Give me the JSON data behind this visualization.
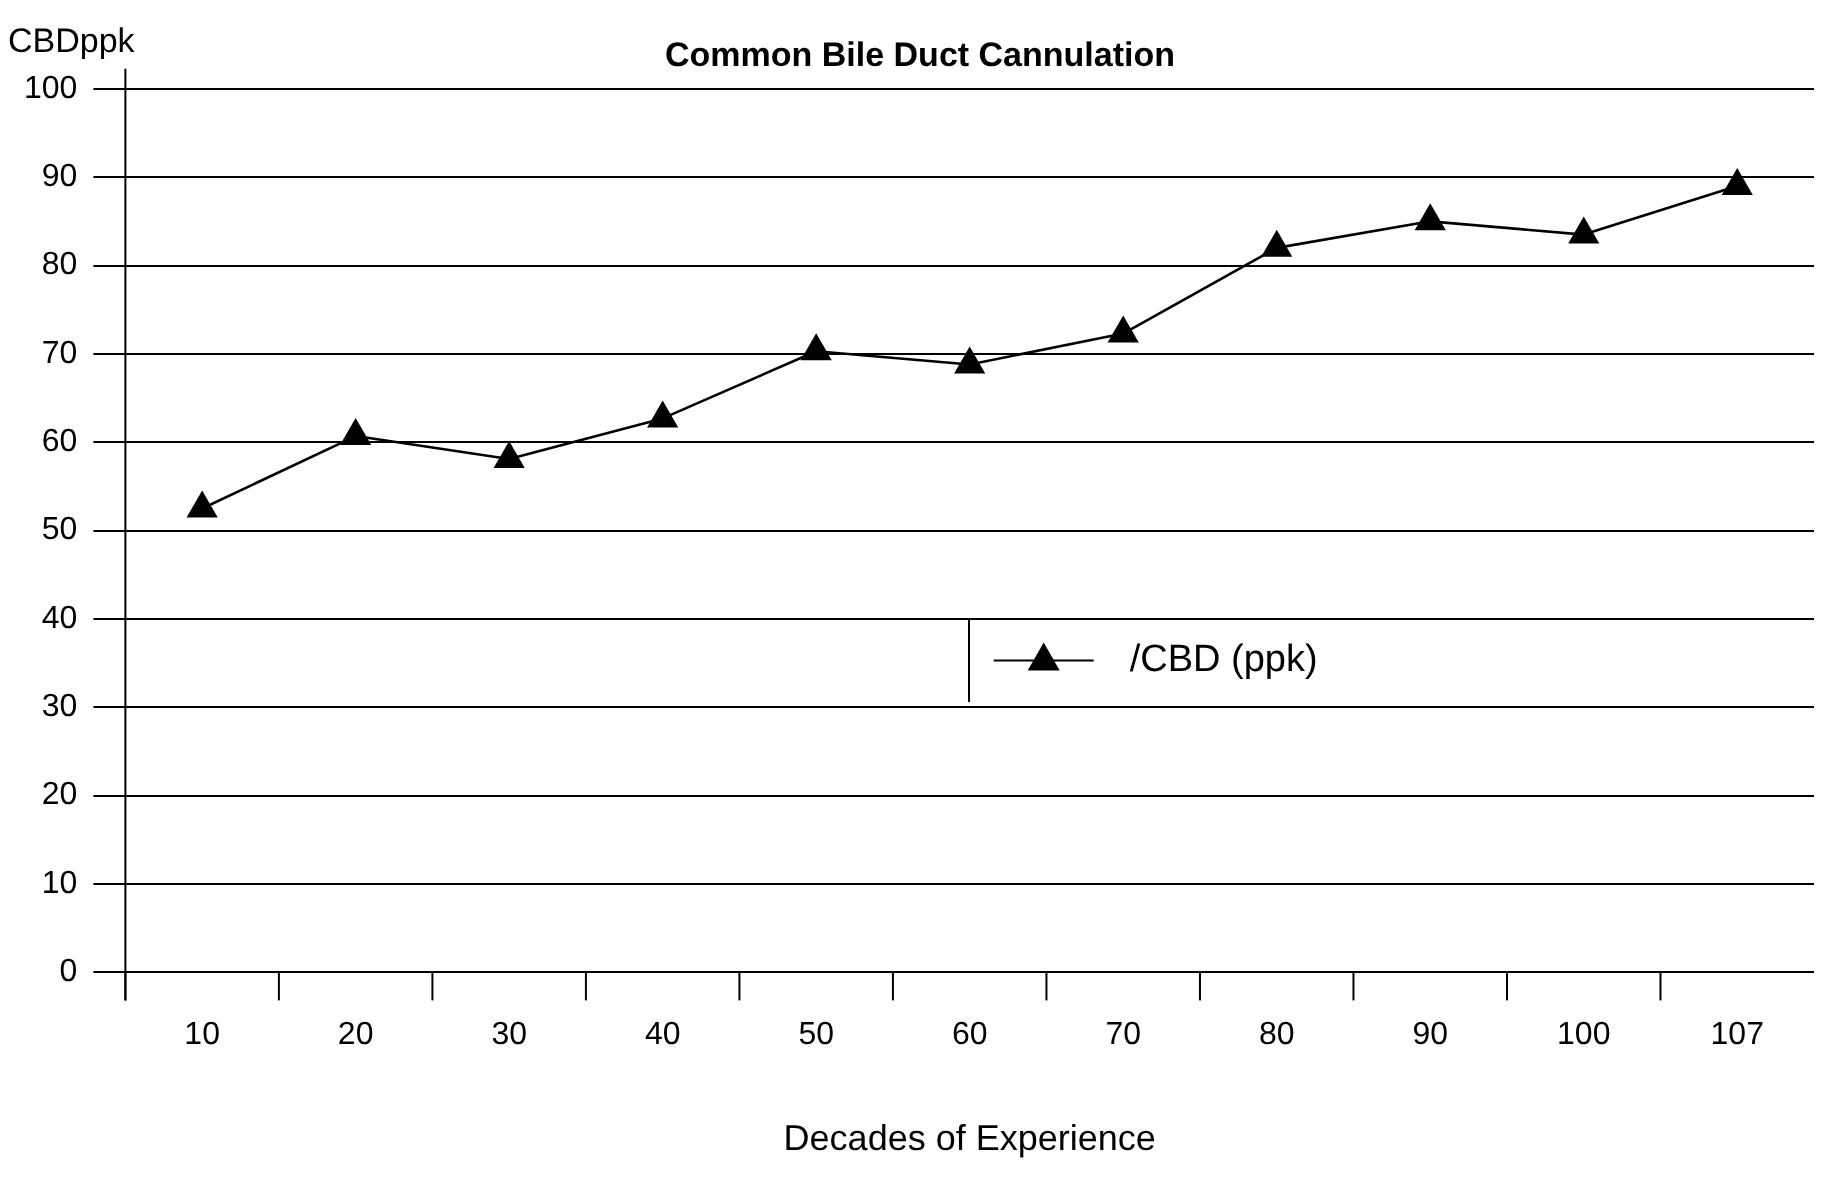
{
  "chart_data": {
    "type": "line",
    "title": "Common Bile Duct Cannulation",
    "xlabel": "Decades of Experience",
    "ylabel": "CBDppk",
    "categories": [
      "10",
      "20",
      "30",
      "40",
      "50",
      "60",
      "70",
      "80",
      "90",
      "100",
      "107"
    ],
    "series": [
      {
        "name": "/CBD (ppk)",
        "color": "#000000",
        "values": [
          52.5,
          60.7,
          58.1,
          62.7,
          70.3,
          68.8,
          72.3,
          82,
          85,
          83.5,
          89
        ]
      }
    ],
    "ylim": [
      0,
      100
    ],
    "yticks": [
      0,
      10,
      20,
      30,
      40,
      50,
      60,
      70,
      80,
      90,
      100
    ],
    "grid": "y",
    "legend": "center",
    "marker": "triangle",
    "line_style": "solid"
  }
}
